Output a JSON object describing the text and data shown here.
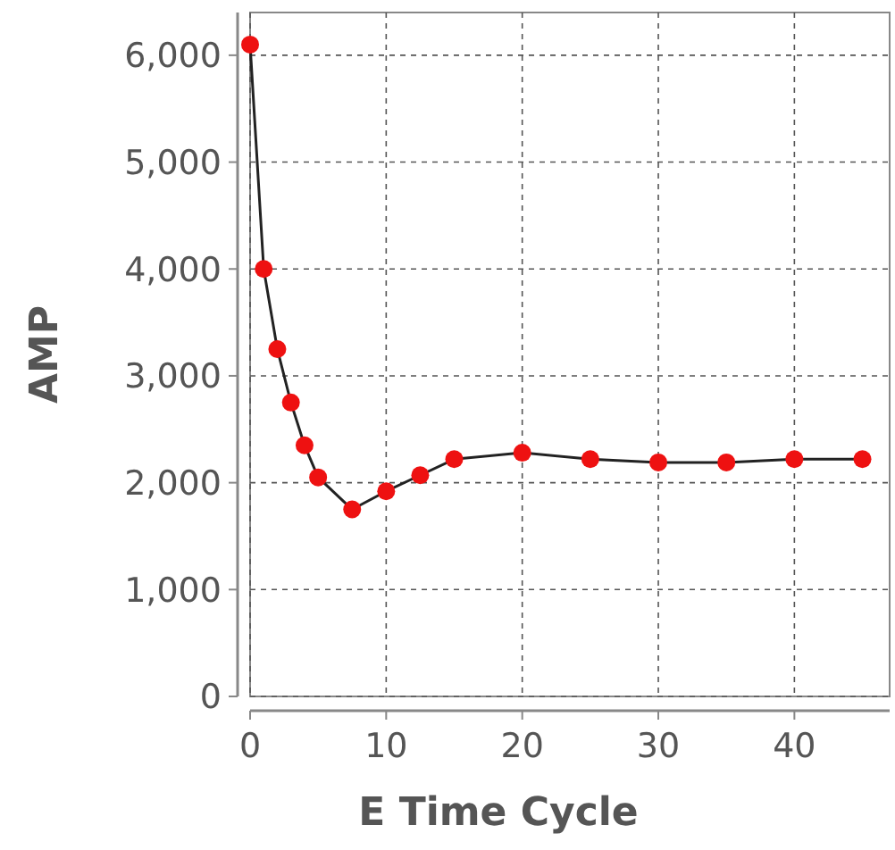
{
  "chart_data": {
    "type": "line",
    "xlabel": "E Time Cycle",
    "ylabel": "AMP",
    "x": [
      0,
      1,
      2,
      3,
      4,
      5,
      7.5,
      10,
      12.5,
      15,
      20,
      25,
      30,
      35,
      40,
      45
    ],
    "series": [
      {
        "color": "#ee1111",
        "values": [
          6100,
          4000,
          3250,
          2750,
          2350,
          2050,
          1750,
          1920,
          2070,
          2220,
          2280,
          2220,
          2190,
          2190,
          2220,
          2220
        ]
      }
    ],
    "marker": "circle",
    "xlim": [
      0,
      47
    ],
    "xticks": [
      0,
      10,
      20,
      30,
      40
    ],
    "ylim": [
      0,
      6400
    ],
    "yticks": [
      {
        "value": 0,
        "label": "0"
      },
      {
        "value": 1000,
        "label": "1,000"
      },
      {
        "value": 2000,
        "label": "2,000"
      },
      {
        "value": 3000,
        "label": "3,000"
      },
      {
        "value": 4000,
        "label": "4,000"
      },
      {
        "value": 5000,
        "label": "5,000"
      },
      {
        "value": 6000,
        "label": "6,000"
      }
    ],
    "grid": true,
    "line_style": "solid"
  }
}
